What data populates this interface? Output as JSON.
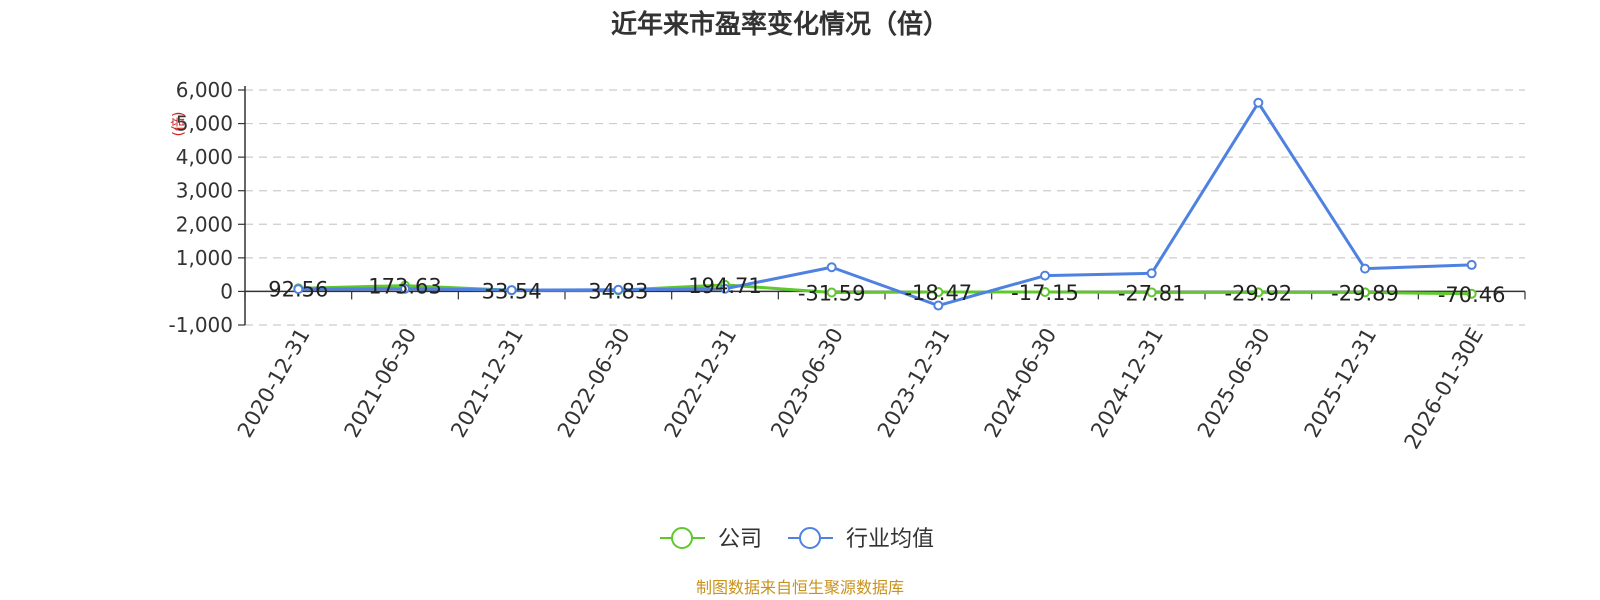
{
  "chart_data": {
    "type": "line",
    "title": "近年来市盈率变化情况（倍）",
    "ylabel": "(倍)",
    "categories": [
      "2020-12-31",
      "2021-06-30",
      "2021-12-31",
      "2022-06-30",
      "2022-12-31",
      "2023-06-30",
      "2023-12-31",
      "2024-06-30",
      "2024-12-31",
      "2025-06-30",
      "2025-12-31",
      "2026-01-30E"
    ],
    "series": [
      {
        "name": "公司",
        "color": "#5ec82c",
        "values": [
          92.56,
          173.63,
          33.54,
          34.83,
          194.71,
          -31.59,
          -18.47,
          -17.15,
          -27.81,
          -29.92,
          -29.89,
          -70.46
        ],
        "labels": [
          "92.56",
          "173.63",
          "33.54",
          "34.83",
          "194.71",
          "-31.59",
          "-18.47",
          "-17.15",
          "-27.81",
          "-29.92",
          "-29.89",
          "-70.46"
        ]
      },
      {
        "name": "行业均值",
        "color": "#4f81e0",
        "values": [
          70,
          80,
          40,
          50,
          80,
          720,
          -420,
          470,
          540,
          5620,
          680,
          790
        ]
      }
    ],
    "ylim": [
      -1000,
      6000
    ],
    "yticks": [
      -1000,
      0,
      1000,
      2000,
      3000,
      4000,
      5000,
      6000
    ],
    "ytick_labels": [
      "-1,000",
      "0",
      "1,000",
      "2,000",
      "3,000",
      "4,000",
      "5,000",
      "6,000"
    ],
    "grid": true,
    "legend": "bottom-center"
  },
  "source": {
    "text": "制图数据来自恒生聚源数据库",
    "color": "#c8921e"
  }
}
